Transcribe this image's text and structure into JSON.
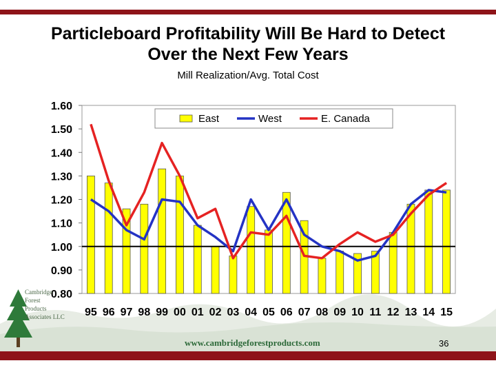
{
  "slide": {
    "title_line1": "Particleboard Profitability Will Be Hard to Detect",
    "title_line2": "Over the Next Few Years",
    "subtitle": "Mill Realization/Avg. Total Cost",
    "slide_number": "36",
    "website": "www.cambridgeforestproducts.com",
    "logo_line1": "Cambridge",
    "logo_line2": "Forest",
    "logo_line3": "Products",
    "logo_line4": "Associates LLC",
    "accent_color": "#8e1419"
  },
  "chart_data": {
    "type": "bar",
    "title": "Mill Realization/Avg. Total Cost",
    "categories": [
      "95",
      "96",
      "97",
      "98",
      "99",
      "00",
      "01",
      "02",
      "03",
      "04",
      "05",
      "06",
      "07",
      "08",
      "09",
      "10",
      "11",
      "12",
      "13",
      "14",
      "15"
    ],
    "ylim": [
      0.8,
      1.6
    ],
    "yticks": [
      "0.80",
      "0.90",
      "1.00",
      "1.10",
      "1.20",
      "1.30",
      "1.40",
      "1.50",
      "1.60"
    ],
    "reference_line": 1.0,
    "legend": [
      "East",
      "West",
      "E. Canada"
    ],
    "series": [
      {
        "name": "East",
        "kind": "bar",
        "color": "#ffff00",
        "values": [
          1.3,
          1.27,
          1.16,
          1.18,
          1.33,
          1.3,
          1.09,
          1.0,
          0.96,
          1.17,
          1.07,
          1.23,
          1.11,
          0.95,
          0.98,
          0.97,
          0.98,
          1.06,
          1.18,
          1.24,
          1.24
        ]
      },
      {
        "name": "West",
        "kind": "line",
        "color": "#2433c4",
        "values": [
          1.2,
          1.15,
          1.07,
          1.03,
          1.2,
          1.19,
          1.09,
          1.04,
          0.98,
          1.2,
          1.07,
          1.2,
          1.05,
          1.0,
          0.98,
          0.94,
          0.96,
          1.06,
          1.18,
          1.24,
          1.23
        ]
      },
      {
        "name": "E. Canada",
        "kind": "line",
        "color": "#e52222",
        "values": [
          1.52,
          1.28,
          1.09,
          1.23,
          1.44,
          1.3,
          1.12,
          1.16,
          0.95,
          1.06,
          1.05,
          1.13,
          0.96,
          0.95,
          1.01,
          1.06,
          1.02,
          1.05,
          1.14,
          1.22,
          1.27
        ]
      }
    ]
  }
}
